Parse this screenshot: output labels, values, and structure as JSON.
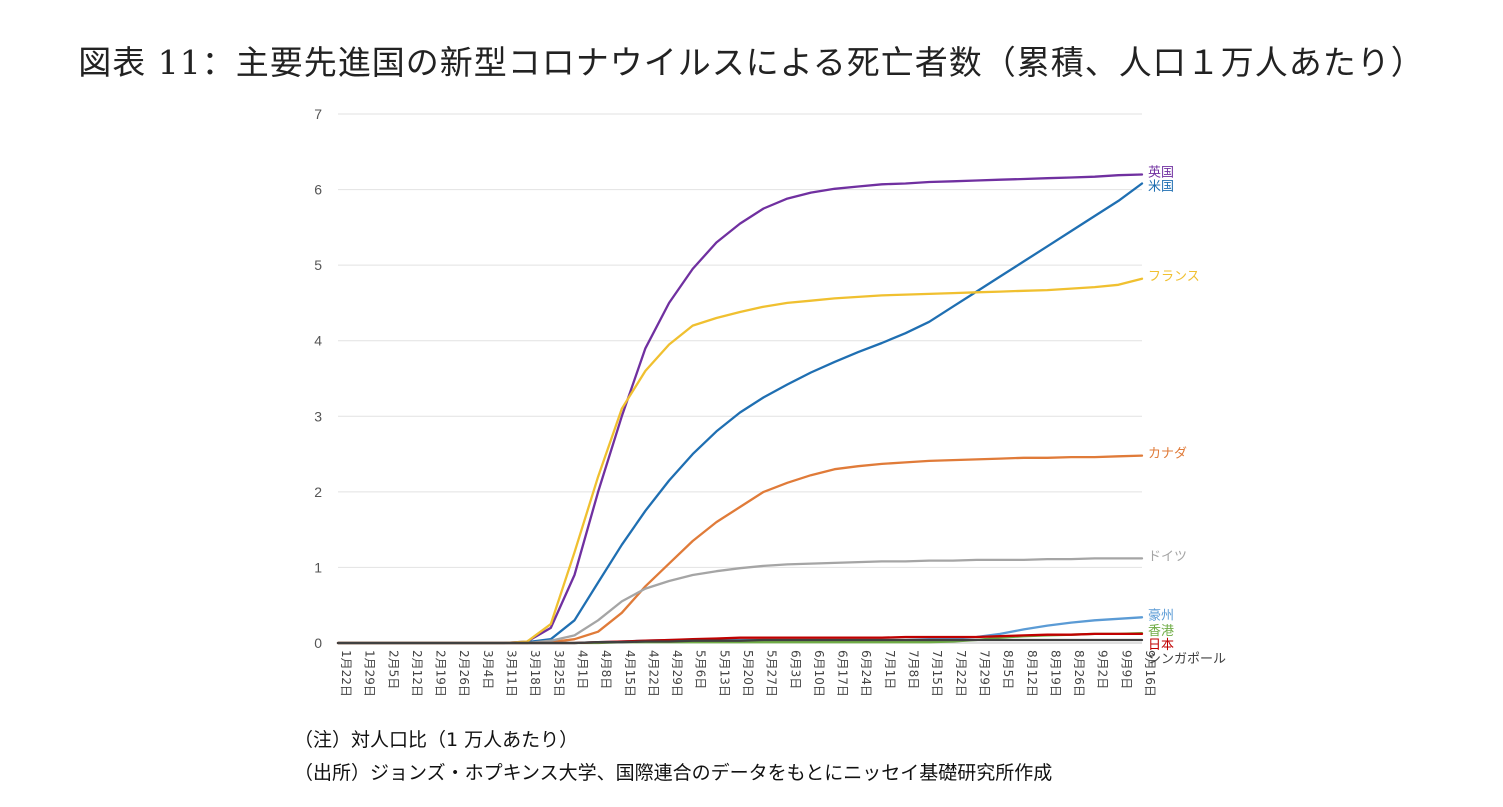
{
  "page": {
    "title": "図表 11：主要先進国の新型コロナウイルスによる死亡者数（累積、人口１万人あたり）",
    "note": "（注）対人口比（1 万人あたり）",
    "source": "（出所）ジョンズ・ホプキンス大学、国際連合のデータをもとにニッセイ基礎研究所作成"
  },
  "chart_data": {
    "type": "line",
    "title": "図表 11：主要先進国の新型コロナウイルスによる死亡者数（累積、人口１万人あたり）",
    "xlabel": "",
    "ylabel": "",
    "ylim": [
      0,
      7
    ],
    "yticks": [
      0,
      1,
      2,
      3,
      4,
      5,
      6,
      7
    ],
    "grid": true,
    "legend": "inline-right",
    "categories": [
      "1月22日",
      "1月29日",
      "2月5日",
      "2月12日",
      "2月19日",
      "2月26日",
      "3月4日",
      "3月11日",
      "3月18日",
      "3月25日",
      "4月1日",
      "4月8日",
      "4月15日",
      "4月22日",
      "4月29日",
      "5月6日",
      "5月13日",
      "5月20日",
      "5月27日",
      "6月3日",
      "6月10日",
      "6月17日",
      "6月24日",
      "7月1日",
      "7月8日",
      "7月15日",
      "7月22日",
      "7月29日",
      "8月5日",
      "8月12日",
      "8月19日",
      "8月26日",
      "9月2日",
      "9月9日",
      "9月16日"
    ],
    "series": [
      {
        "name": "英国",
        "color": "#7030a0",
        "values": [
          0,
          0,
          0,
          0,
          0,
          0,
          0,
          0,
          0.02,
          0.2,
          0.9,
          2.0,
          3.0,
          3.9,
          4.5,
          4.95,
          5.3,
          5.55,
          5.75,
          5.88,
          5.96,
          6.01,
          6.04,
          6.07,
          6.08,
          6.1,
          6.11,
          6.12,
          6.13,
          6.14,
          6.15,
          6.16,
          6.17,
          6.19,
          6.2
        ]
      },
      {
        "name": "米国",
        "color": "#1f6fb2",
        "values": [
          0,
          0,
          0,
          0,
          0,
          0,
          0,
          0,
          0.01,
          0.05,
          0.3,
          0.8,
          1.3,
          1.75,
          2.15,
          2.5,
          2.8,
          3.05,
          3.25,
          3.42,
          3.58,
          3.72,
          3.85,
          3.97,
          4.1,
          4.25,
          4.45,
          4.65,
          4.85,
          5.05,
          5.25,
          5.45,
          5.65,
          5.85,
          6.08
        ]
      },
      {
        "name": "フランス",
        "color": "#f0c030",
        "values": [
          0,
          0,
          0,
          0,
          0,
          0,
          0,
          0,
          0.02,
          0.25,
          1.2,
          2.2,
          3.1,
          3.6,
          3.95,
          4.2,
          4.3,
          4.38,
          4.45,
          4.5,
          4.53,
          4.56,
          4.58,
          4.6,
          4.61,
          4.62,
          4.63,
          4.64,
          4.65,
          4.66,
          4.67,
          4.69,
          4.71,
          4.74,
          4.82
        ]
      },
      {
        "name": "カナダ",
        "color": "#e07b39",
        "values": [
          0,
          0,
          0,
          0,
          0,
          0,
          0,
          0,
          0,
          0.01,
          0.05,
          0.15,
          0.4,
          0.75,
          1.05,
          1.35,
          1.6,
          1.8,
          2.0,
          2.12,
          2.22,
          2.3,
          2.34,
          2.37,
          2.39,
          2.41,
          2.42,
          2.43,
          2.44,
          2.45,
          2.45,
          2.46,
          2.46,
          2.47,
          2.48
        ]
      },
      {
        "name": "ドイツ",
        "color": "#a5a5a5",
        "values": [
          0,
          0,
          0,
          0,
          0,
          0,
          0,
          0,
          0,
          0.03,
          0.1,
          0.3,
          0.55,
          0.72,
          0.82,
          0.9,
          0.95,
          0.99,
          1.02,
          1.04,
          1.05,
          1.06,
          1.07,
          1.08,
          1.08,
          1.09,
          1.09,
          1.1,
          1.1,
          1.1,
          1.11,
          1.11,
          1.12,
          1.12,
          1.12
        ]
      },
      {
        "name": "豪州",
        "color": "#5b9bd5",
        "values": [
          0,
          0,
          0,
          0,
          0,
          0,
          0,
          0,
          0,
          0,
          0,
          0.01,
          0.02,
          0.03,
          0.04,
          0.04,
          0.04,
          0.04,
          0.04,
          0.04,
          0.04,
          0.04,
          0.04,
          0.04,
          0.04,
          0.05,
          0.06,
          0.08,
          0.12,
          0.18,
          0.23,
          0.27,
          0.3,
          0.32,
          0.34
        ]
      },
      {
        "name": "香港",
        "color": "#70ad47",
        "values": [
          0,
          0,
          0,
          0,
          0,
          0,
          0,
          0,
          0,
          0,
          0,
          0,
          0.01,
          0.01,
          0.01,
          0.01,
          0.01,
          0.01,
          0.01,
          0.01,
          0.01,
          0.01,
          0.01,
          0.01,
          0.01,
          0.01,
          0.02,
          0.04,
          0.07,
          0.09,
          0.1,
          0.11,
          0.12,
          0.12,
          0.13
        ]
      },
      {
        "name": "日本",
        "color": "#c00000",
        "values": [
          0,
          0,
          0,
          0,
          0,
          0,
          0,
          0,
          0,
          0,
          0,
          0.01,
          0.02,
          0.03,
          0.04,
          0.05,
          0.06,
          0.07,
          0.07,
          0.07,
          0.07,
          0.07,
          0.07,
          0.07,
          0.08,
          0.08,
          0.08,
          0.08,
          0.09,
          0.1,
          0.11,
          0.11,
          0.12,
          0.12,
          0.12
        ]
      },
      {
        "name": "シンガポール",
        "color": "#404040",
        "values": [
          0,
          0,
          0,
          0,
          0,
          0,
          0,
          0,
          0,
          0,
          0,
          0.01,
          0.01,
          0.02,
          0.02,
          0.03,
          0.03,
          0.03,
          0.04,
          0.04,
          0.04,
          0.04,
          0.04,
          0.04,
          0.04,
          0.04,
          0.04,
          0.04,
          0.04,
          0.04,
          0.04,
          0.04,
          0.04,
          0.04,
          0.04
        ]
      }
    ]
  }
}
